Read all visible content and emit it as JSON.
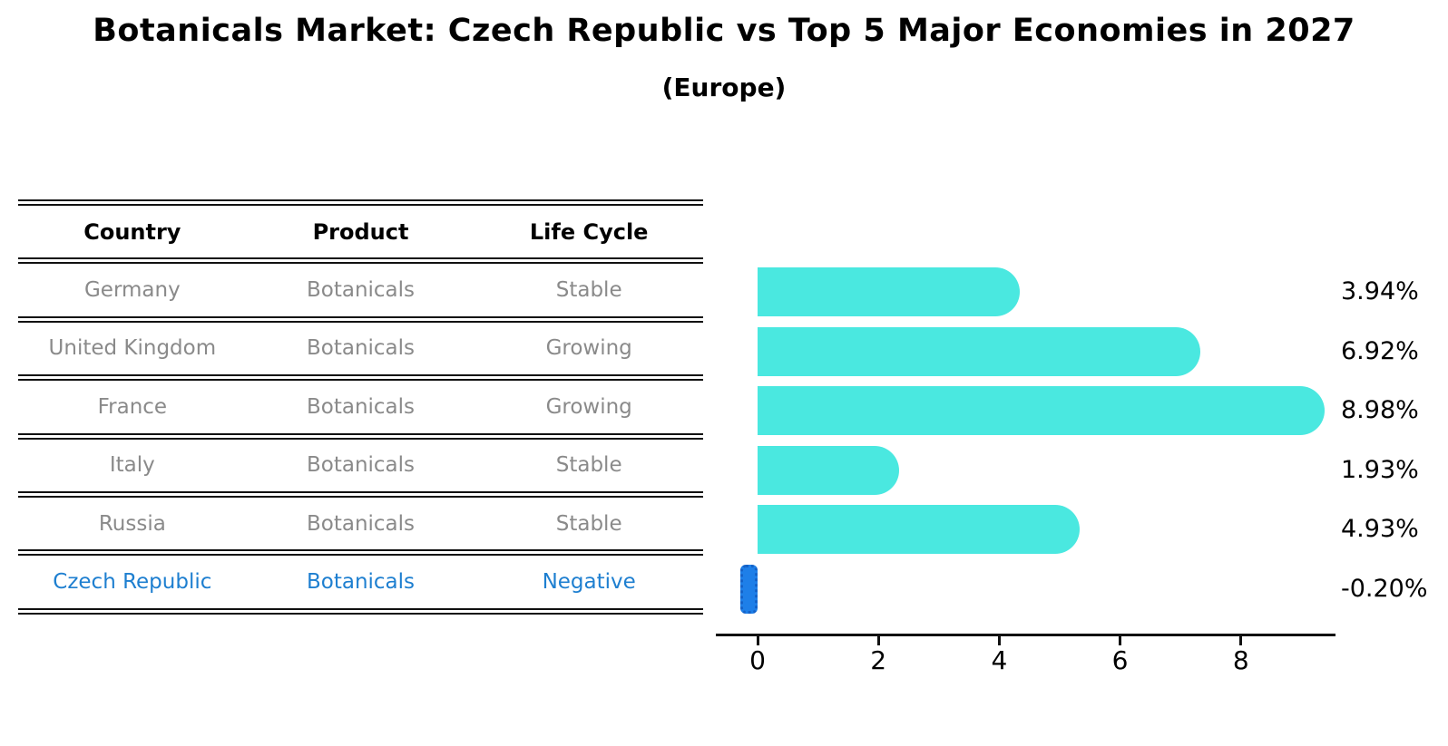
{
  "title": "Botanicals Market: Czech Republic vs Top 5 Major Economies in 2027",
  "subtitle": "(Europe)",
  "table": {
    "headers": [
      "Country",
      "Product",
      "Life Cycle"
    ],
    "rows": [
      {
        "country": "Germany",
        "product": "Botanicals",
        "life_cycle": "Stable",
        "highlighted": false
      },
      {
        "country": "United Kingdom",
        "product": "Botanicals",
        "life_cycle": "Growing",
        "highlighted": false
      },
      {
        "country": "France",
        "product": "Botanicals",
        "life_cycle": "Growing",
        "highlighted": false
      },
      {
        "country": "Italy",
        "product": "Botanicals",
        "life_cycle": "Stable",
        "highlighted": false
      },
      {
        "country": "Russia",
        "product": "Botanicals",
        "life_cycle": "Stable",
        "highlighted": false
      },
      {
        "country": "Czech Republic",
        "product": "Botanicals",
        "life_cycle": "Negative",
        "highlighted": true
      }
    ]
  },
  "chart_data": {
    "type": "bar",
    "orientation": "horizontal",
    "categories": [
      "Germany",
      "United Kingdom",
      "France",
      "Italy",
      "Russia",
      "Czech Republic"
    ],
    "values": [
      3.94,
      6.92,
      8.98,
      1.93,
      4.93,
      -0.2
    ],
    "value_labels": [
      "3.94%",
      "6.92%",
      "8.98%",
      "1.93%",
      "4.93%",
      "-0.20%"
    ],
    "xticks": [
      "0",
      "2",
      "4",
      "6",
      "8"
    ],
    "xlim": [
      -0.7,
      9.6
    ],
    "grid": false,
    "legend": false,
    "bar_color": "#4ae8e0",
    "highlight_color": "#1e7fe8",
    "highlight_index": 5
  },
  "colors": {
    "text_muted": "#8a8a8a",
    "highlight_text": "#1e7fd0",
    "neg_edge": "#1462c8",
    "axis": "#111111"
  }
}
